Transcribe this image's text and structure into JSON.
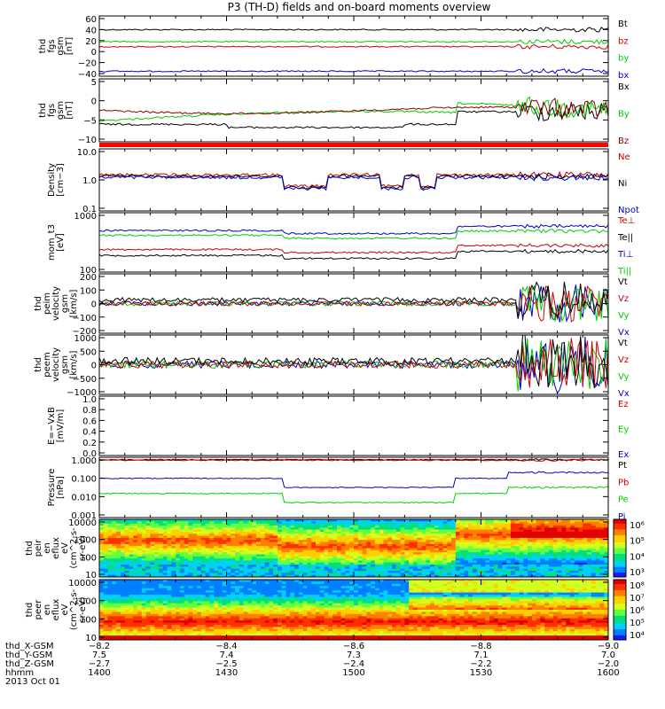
{
  "title": "P3 (TH-D) fields and on-board moments overview",
  "colors": {
    "black": "#000000",
    "red": "#cc0000",
    "green": "#00cc00",
    "blue": "#0000cc",
    "darkred": "#880000"
  },
  "chart_data": [
    {
      "type": "line",
      "id": "fgs1",
      "ylabel": [
        "thd",
        "fgs",
        "gsm",
        "[nT]"
      ],
      "yticks": [
        "60",
        "40",
        "20",
        "0",
        "−20",
        "−40"
      ],
      "ylim": [
        -45,
        65
      ],
      "series": [
        {
          "name": "Bt",
          "color": "#000000",
          "level": 40
        },
        {
          "name": "bz",
          "color": "#cc0000",
          "level": 9
        },
        {
          "name": "by",
          "color": "#00cc00",
          "level": 18
        },
        {
          "name": "bx",
          "color": "#0000cc",
          "level": -36
        }
      ]
    },
    {
      "type": "line",
      "id": "fgs2",
      "ylabel": [
        "thd",
        "fgs",
        "gsm",
        "[nT]"
      ],
      "yticks": [
        "5",
        "0",
        "−5",
        "−10"
      ],
      "ylim": [
        -12,
        6
      ],
      "series": [
        {
          "name": "Bx",
          "color": "#000000",
          "level": -7
        },
        {
          "name": "By",
          "color": "#00cc00",
          "level": -6
        },
        {
          "name": "Bz",
          "color": "#880000",
          "level": -3
        }
      ]
    },
    {
      "type": "line",
      "id": "density",
      "ylabel": [
        "Density",
        "[cm−3]"
      ],
      "yticks": [
        "10.0",
        "1.0",
        "0.1"
      ],
      "scale": "log",
      "series": [
        {
          "name": "Ne",
          "color": "#cc0000"
        },
        {
          "name": "Ni",
          "color": "#000000"
        },
        {
          "name": "Npot",
          "color": "#0000cc"
        }
      ]
    },
    {
      "type": "line",
      "id": "temp",
      "ylabel": [
        "mom_t3",
        "[eV]"
      ],
      "yticks": [
        "1000",
        "100"
      ],
      "scale": "log",
      "series": [
        {
          "name": "Te⊥",
          "color": "#cc0000"
        },
        {
          "name": "Te||",
          "color": "#000000"
        },
        {
          "name": "Ti⊥",
          "color": "#0000cc"
        },
        {
          "name": "Ti||",
          "color": "#00cc00"
        }
      ]
    },
    {
      "type": "line",
      "id": "peim",
      "ylabel": [
        "thd",
        "peim",
        "velocity",
        "gsm",
        "[km/s]"
      ],
      "yticks": [
        "200",
        "100",
        "0",
        "−100",
        "−200"
      ],
      "ylim": [
        -200,
        200
      ],
      "series": [
        {
          "name": "Vt",
          "color": "#000000"
        },
        {
          "name": "Vz",
          "color": "#cc0000"
        },
        {
          "name": "Vy",
          "color": "#00cc00"
        },
        {
          "name": "Vx",
          "color": "#0000cc"
        }
      ]
    },
    {
      "type": "line",
      "id": "peem",
      "ylabel": [
        "thd",
        "peem",
        "velocity",
        "gsm",
        "[km/s]"
      ],
      "yticks": [
        "1000",
        "500",
        "0",
        "−500",
        "−1000"
      ],
      "ylim": [
        -1000,
        1000
      ],
      "series": [
        {
          "name": "Vt",
          "color": "#000000"
        },
        {
          "name": "Vz",
          "color": "#cc0000"
        },
        {
          "name": "Vy",
          "color": "#00cc00"
        },
        {
          "name": "Vx",
          "color": "#0000cc"
        }
      ]
    },
    {
      "type": "line",
      "id": "efield",
      "ylabel": [
        "E=−VxB",
        "[mV/m]"
      ],
      "yticks": [
        "1.0",
        "0.8",
        "0.6",
        "0.4",
        "0.2",
        "0.0"
      ],
      "ylim": [
        0,
        1
      ],
      "series": [
        {
          "name": "Ez",
          "color": "#cc0000"
        },
        {
          "name": "Ey",
          "color": "#00cc00"
        },
        {
          "name": "Ex",
          "color": "#0000cc"
        }
      ]
    },
    {
      "type": "line",
      "id": "pressure",
      "ylabel": [
        "Pressure",
        "[nPa]"
      ],
      "yticks": [
        "1.000",
        "0.100",
        "0.010",
        "0.001"
      ],
      "scale": "log",
      "series": [
        {
          "name": "Pt",
          "color": "#000000"
        },
        {
          "name": "Pb",
          "color": "#cc0000"
        },
        {
          "name": "Pe",
          "color": "#00cc00"
        },
        {
          "name": "Pi",
          "color": "#0000cc"
        }
      ]
    },
    {
      "type": "heatmap",
      "id": "peir",
      "ylabel": [
        "thd",
        "peir",
        "en",
        "eflux",
        "eV",
        "(cm^2-s-",
        "sr-eV)"
      ],
      "yticks": [
        "10000",
        "1000",
        "100",
        "10"
      ],
      "scale": "log",
      "colorbar": [
        "10⁶",
        "10⁵",
        "10⁴",
        "10³"
      ]
    },
    {
      "type": "heatmap",
      "id": "peer",
      "ylabel": [
        "thd",
        "peer",
        "en",
        "eflux",
        "eV",
        "(cm^2-s-",
        "sr-eV)"
      ],
      "yticks": [
        "10000",
        "1000",
        "100",
        "10"
      ],
      "scale": "log",
      "colorbar": [
        "10⁸",
        "10⁷",
        "10⁶",
        "10⁵",
        "10⁴"
      ]
    }
  ],
  "footer": {
    "rows": [
      {
        "label": "thd_X-GSM",
        "values": [
          "−8.2",
          "−8.4",
          "−8.6",
          "−8.8",
          "−9.0"
        ]
      },
      {
        "label": "thd_Y-GSM",
        "values": [
          "7.5",
          "7.4",
          "7.3",
          "7.1",
          "7.0"
        ]
      },
      {
        "label": "thd_Z-GSM",
        "values": [
          "−2.7",
          "−2.5",
          "−2.4",
          "−2.2",
          "−2.0"
        ]
      },
      {
        "label": "hhmm",
        "values": [
          "1400",
          "1430",
          "1500",
          "1530",
          "1600"
        ]
      }
    ],
    "date": "2013 Oct 01"
  }
}
